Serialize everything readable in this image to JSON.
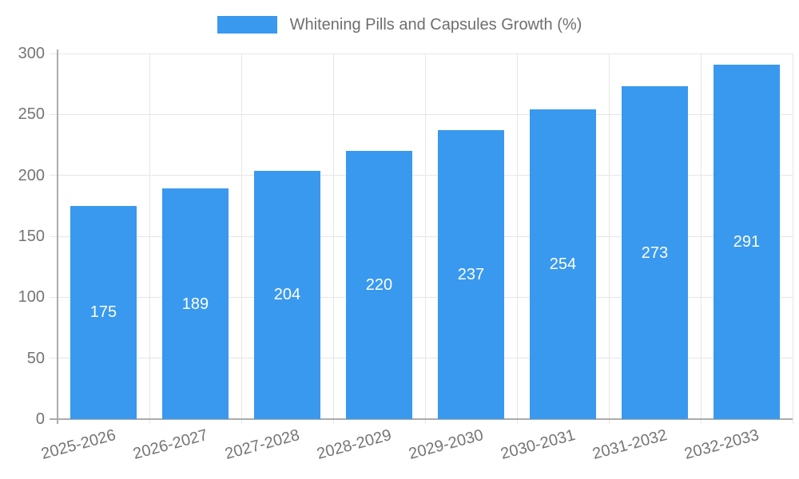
{
  "chart_data": {
    "type": "bar",
    "title": "Whitening Pills and Capsules Growth (%)",
    "categories": [
      "2025-2026",
      "2026-2027",
      "2027-2028",
      "2028-2029",
      "2029-2030",
      "2030-2031",
      "2031-2032",
      "2032-2033"
    ],
    "values": [
      175,
      189,
      204,
      220,
      237,
      254,
      273,
      291
    ],
    "xlabel": "",
    "ylabel": "",
    "ylim": [
      0,
      300
    ],
    "yticks": [
      0,
      50,
      100,
      150,
      200,
      250,
      300
    ],
    "grid": true,
    "legend_position": "top",
    "x_tick_rotation_deg": -15,
    "value_labels_inside_bars": true,
    "colors": {
      "bar": "#3999EE",
      "value_label": "#FFFFFF",
      "axis": "#ABABAB",
      "grid": "#E6E6E6",
      "tick_label": "#757575",
      "legend_label": "#6E6E6E"
    }
  }
}
